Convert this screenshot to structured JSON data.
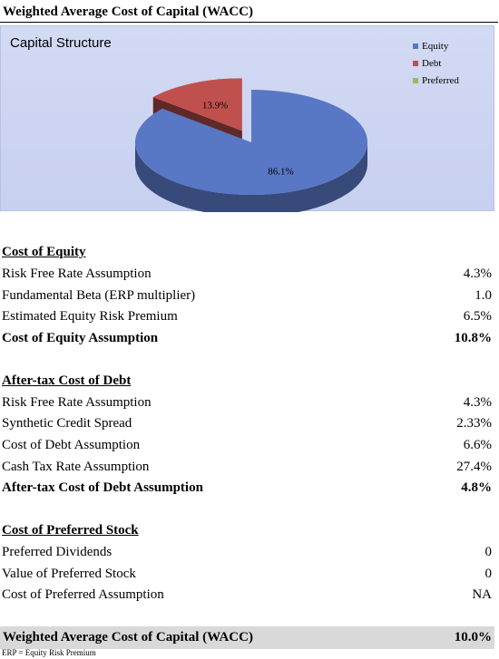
{
  "page_title": "Weighted Average Cost of Capital (WACC)",
  "chart_data": {
    "type": "pie",
    "title": "Capital Structure",
    "categories": [
      "Equity",
      "Debt",
      "Preferred"
    ],
    "values": [
      86.1,
      13.9,
      0
    ],
    "data_labels": [
      "86.1%",
      "13.9%",
      ""
    ],
    "colors": [
      "#5877c4",
      "#c0504d",
      "#9bbb59"
    ],
    "legend_position": "right",
    "exploded_slice": "Debt"
  },
  "sections": {
    "equity": {
      "header": "Cost of Equity",
      "rows": [
        {
          "label": "Risk Free Rate Assumption",
          "value": "4.3%"
        },
        {
          "label": "Fundamental Beta (ERP multiplier)",
          "value": "1.0"
        },
        {
          "label": "Estimated Equity Risk Premium",
          "value": "6.5%"
        }
      ],
      "total": {
        "label": "Cost of Equity Assumption",
        "value": "10.8%"
      }
    },
    "debt": {
      "header": "After-tax Cost of Debt",
      "rows": [
        {
          "label": "Risk Free Rate Assumption",
          "value": "4.3%"
        },
        {
          "label": "Synthetic Credit Spread",
          "value": "2.33%"
        },
        {
          "label": "Cost of Debt Assumption",
          "value": "6.6%"
        },
        {
          "label": "Cash Tax Rate Assumption",
          "value": "27.4%"
        }
      ],
      "total": {
        "label": "After-tax Cost of Debt Assumption",
        "value": "4.8%"
      }
    },
    "preferred": {
      "header": "Cost of Preferred Stock",
      "rows": [
        {
          "label": "Preferred Dividends",
          "value": "0"
        },
        {
          "label": "Value of Preferred Stock",
          "value": "0"
        },
        {
          "label": "Cost of Preferred Assumption",
          "value": "NA"
        }
      ]
    }
  },
  "wacc": {
    "label": "Weighted Average Cost of Capital (WACC)",
    "value": "10.0%"
  },
  "footnote": "ERP = Equity Risk Premium"
}
